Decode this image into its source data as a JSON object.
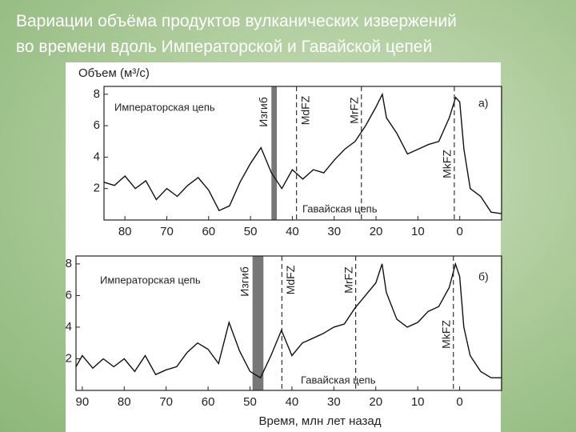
{
  "slide_title": [
    "Вариации объёма продуктов вулканических извержений",
    "во времени вдоль Императорской и Гавайской цепей"
  ],
  "x_label": "Время, млн лет назад",
  "chart_data": [
    {
      "type": "line",
      "y_label": "Объем (м³/с)",
      "panel_label": "а)",
      "annotations": [
        "Императорская цепь",
        "Гавайская цепь"
      ],
      "bend": {
        "label": "Изгиб",
        "range": [
          45,
          43.7
        ]
      },
      "fracture_zones": [
        {
          "label": "MdFZ",
          "x": 39
        },
        {
          "label": "MrFZ",
          "x": 23.5
        },
        {
          "label": "MkFZ",
          "x": 1.3
        }
      ],
      "x": [
        85,
        82.5,
        80,
        77.5,
        75,
        72.5,
        70,
        67.5,
        65,
        62.5,
        60,
        57.5,
        55,
        52.5,
        50,
        47.5,
        45,
        42.5,
        40,
        37.5,
        35,
        32.5,
        30,
        27.5,
        25,
        22.5,
        20,
        18.5,
        17.5,
        15,
        12.5,
        10,
        7.5,
        5,
        2.5,
        1,
        0,
        -1,
        -2.5,
        -5,
        -7.5,
        -10
      ],
      "values": [
        2.4,
        2.2,
        2.8,
        2.0,
        2.5,
        1.3,
        2.0,
        1.5,
        2.2,
        2.7,
        1.9,
        0.6,
        0.9,
        2.4,
        3.6,
        4.6,
        3.0,
        2.0,
        3.2,
        2.6,
        3.2,
        3.0,
        3.8,
        4.5,
        5.0,
        6.0,
        7.2,
        8.0,
        6.5,
        5.5,
        4.2,
        4.5,
        4.8,
        5.0,
        6.5,
        7.8,
        7.5,
        4.5,
        2.0,
        1.5,
        0.5,
        0.4
      ],
      "color": "#111111",
      "xlim": [
        85,
        -10
      ],
      "ylim": [
        0,
        8.5
      ],
      "xticks": [
        80,
        70,
        60,
        50,
        40,
        30,
        20,
        10,
        0
      ],
      "yticks": [
        2,
        4,
        6,
        8
      ]
    },
    {
      "type": "line",
      "panel_label": "б)",
      "annotations": [
        "Императорская цепь",
        "Гавайская цепь"
      ],
      "bend": {
        "label": "Изгиб",
        "range": [
          49.4,
          46.8
        ]
      },
      "fracture_zones": [
        {
          "label": "MdFZ",
          "x": 42.4
        },
        {
          "label": "MrFZ",
          "x": 24.8
        },
        {
          "label": "MkFZ",
          "x": 1.5
        }
      ],
      "x": [
        91.5,
        90,
        87.5,
        85,
        82.5,
        80,
        77.5,
        75,
        72.5,
        70,
        67.5,
        65,
        62.5,
        60,
        57.5,
        55,
        52.5,
        50,
        47.5,
        45,
        42.5,
        40,
        37.5,
        35,
        32.5,
        30,
        27.5,
        25,
        22.5,
        20,
        18.5,
        17.5,
        15,
        12.5,
        10,
        7.5,
        5,
        2.5,
        1,
        0,
        -1,
        -2.5,
        -5,
        -7.5,
        -10
      ],
      "values": [
        1.5,
        2.2,
        1.4,
        2.0,
        1.5,
        2.0,
        1.2,
        2.2,
        1.0,
        1.3,
        1.5,
        2.4,
        3.0,
        2.6,
        1.7,
        4.3,
        2.5,
        1.2,
        0.8,
        2.2,
        3.8,
        2.2,
        3.0,
        3.3,
        3.6,
        4.0,
        4.2,
        5.2,
        6.0,
        6.8,
        8.0,
        6.2,
        4.5,
        4.0,
        4.3,
        5.0,
        5.3,
        6.5,
        8.0,
        7.2,
        4.0,
        2.2,
        1.2,
        0.8,
        0.8
      ],
      "color": "#111111",
      "xlim": [
        91.5,
        -10
      ],
      "ylim": [
        0,
        8.5
      ],
      "xticks": [
        90,
        80,
        70,
        60,
        50,
        40,
        30,
        20,
        10,
        0
      ],
      "yticks": [
        2,
        4,
        6,
        8
      ]
    }
  ]
}
